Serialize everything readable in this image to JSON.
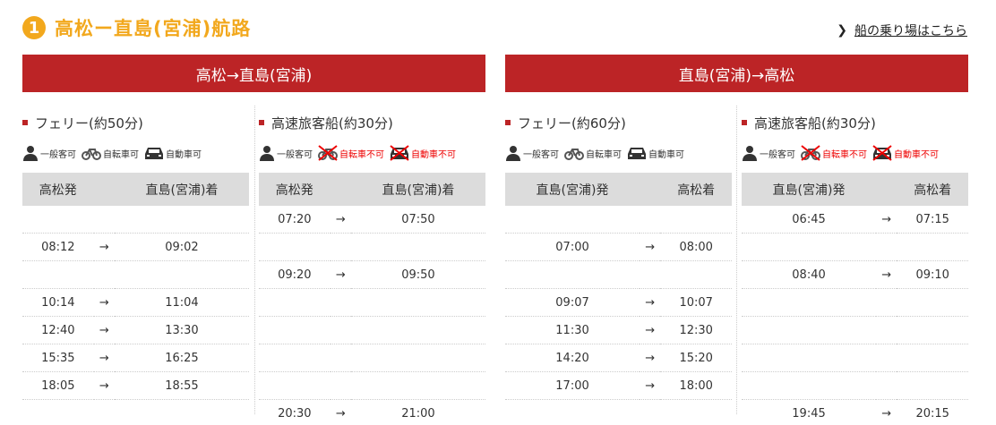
{
  "route_number": "1",
  "route_title": "高松ー直島(宮浦)航路",
  "pier_link": "船の乗り場はこちら",
  "colors": {
    "accent": "#f2a81d",
    "banner": "#bc2426",
    "ng": "#e00000"
  },
  "directions": [
    {
      "label": "高松→直島(宮浦)",
      "columns": [
        {
          "title": "フェリー(約50分)",
          "icons": [
            {
              "icon": "person-icon",
              "label": "一般客可",
              "ok": true
            },
            {
              "icon": "bicycle-icon",
              "label": "自転車可",
              "ok": true
            },
            {
              "icon": "car-icon",
              "label": "自動車可",
              "ok": true
            }
          ],
          "headers": [
            "高松発",
            "直島(宮浦)着"
          ],
          "rows": [
            [
              "",
              "",
              ""
            ],
            [
              "08:12",
              "→",
              "09:02"
            ],
            [
              "",
              "",
              ""
            ],
            [
              "10:14",
              "→",
              "11:04"
            ],
            [
              "12:40",
              "→",
              "13:30"
            ],
            [
              "15:35",
              "→",
              "16:25"
            ],
            [
              "18:05",
              "→",
              "18:55"
            ],
            [
              "",
              "",
              ""
            ]
          ]
        },
        {
          "title": "高速旅客船(約30分)",
          "icons": [
            {
              "icon": "person-icon",
              "label": "一般客可",
              "ok": true
            },
            {
              "icon": "bicycle-icon",
              "label": "自転車不可",
              "ok": false
            },
            {
              "icon": "car-icon",
              "label": "自動車不可",
              "ok": false
            }
          ],
          "headers": [
            "高松発",
            "直島(宮浦)着"
          ],
          "rows": [
            [
              "07:20",
              "→",
              "07:50"
            ],
            [
              "",
              "",
              ""
            ],
            [
              "09:20",
              "→",
              "09:50"
            ],
            [
              "",
              "",
              ""
            ],
            [
              "",
              "",
              ""
            ],
            [
              "",
              "",
              ""
            ],
            [
              "",
              "",
              ""
            ],
            [
              "20:30",
              "→",
              "21:00"
            ]
          ]
        }
      ]
    },
    {
      "label": "直島(宮浦)→高松",
      "columns": [
        {
          "title": "フェリー(約60分)",
          "icons": [
            {
              "icon": "person-icon",
              "label": "一般客可",
              "ok": true
            },
            {
              "icon": "bicycle-icon",
              "label": "自転車可",
              "ok": true
            },
            {
              "icon": "car-icon",
              "label": "自動車可",
              "ok": true
            }
          ],
          "headers": [
            "直島(宮浦)発",
            "高松着"
          ],
          "rows": [
            [
              "",
              "",
              ""
            ],
            [
              "07:00",
              "→",
              "08:00"
            ],
            [
              "",
              "",
              ""
            ],
            [
              "09:07",
              "→",
              "10:07"
            ],
            [
              "11:30",
              "→",
              "12:30"
            ],
            [
              "14:20",
              "→",
              "15:20"
            ],
            [
              "17:00",
              "→",
              "18:00"
            ],
            [
              "",
              "",
              ""
            ]
          ]
        },
        {
          "title": "高速旅客船(約30分)",
          "icons": [
            {
              "icon": "person-icon",
              "label": "一般客可",
              "ok": true
            },
            {
              "icon": "bicycle-icon",
              "label": "自転車不可",
              "ok": false
            },
            {
              "icon": "car-icon",
              "label": "自動車不可",
              "ok": false
            }
          ],
          "headers": [
            "直島(宮浦)発",
            "高松着"
          ],
          "rows": [
            [
              "06:45",
              "→",
              "07:15"
            ],
            [
              "",
              "",
              ""
            ],
            [
              "08:40",
              "→",
              "09:10"
            ],
            [
              "",
              "",
              ""
            ],
            [
              "",
              "",
              ""
            ],
            [
              "",
              "",
              ""
            ],
            [
              "",
              "",
              ""
            ],
            [
              "19:45",
              "→",
              "20:15"
            ]
          ]
        }
      ]
    }
  ]
}
